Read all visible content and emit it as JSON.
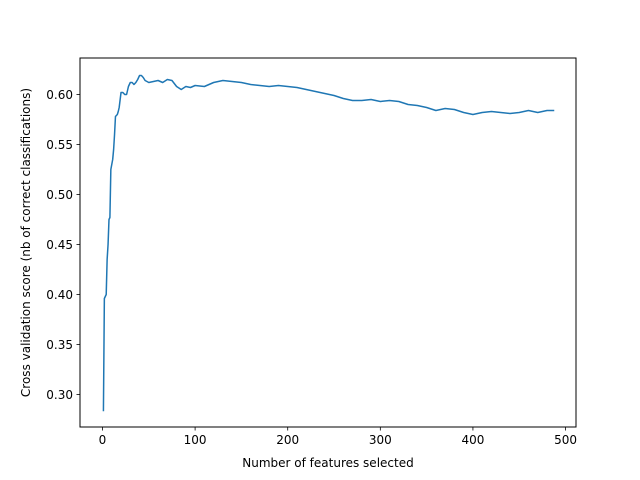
{
  "chart_data": {
    "type": "line",
    "title": "",
    "xlabel": "Number of features selected",
    "ylabel": "Cross validation score (nb of correct classifications)",
    "xlim": [
      -24.3,
      511.3
    ],
    "ylim": [
      0.2675,
      0.6365
    ],
    "xticks": [
      0,
      100,
      200,
      300,
      400,
      500
    ],
    "xtick_labels": [
      "0",
      "100",
      "200",
      "300",
      "400",
      "500"
    ],
    "yticks": [
      0.3,
      0.35,
      0.4,
      0.45,
      0.5,
      0.55,
      0.6
    ],
    "ytick_labels": [
      "0.30",
      "0.35",
      "0.40",
      "0.45",
      "0.50",
      "0.55",
      "0.60"
    ],
    "grid": false,
    "legend": null,
    "series": [
      {
        "color": "#1f77b4",
        "x": [
          1,
          2,
          3,
          4,
          5,
          6,
          7,
          8,
          9,
          10,
          11,
          12,
          13,
          14,
          15,
          16,
          17,
          18,
          20,
          22,
          24,
          26,
          28,
          30,
          32,
          34,
          36,
          38,
          40,
          42,
          44,
          46,
          48,
          50,
          55,
          60,
          65,
          70,
          75,
          80,
          85,
          90,
          95,
          100,
          110,
          120,
          130,
          140,
          150,
          160,
          170,
          180,
          190,
          200,
          210,
          220,
          230,
          240,
          250,
          260,
          270,
          280,
          290,
          300,
          310,
          320,
          330,
          340,
          350,
          360,
          370,
          380,
          390,
          400,
          410,
          420,
          430,
          440,
          450,
          460,
          470,
          480,
          487
        ],
        "y": [
          0.284,
          0.396,
          0.398,
          0.4,
          0.435,
          0.45,
          0.475,
          0.477,
          0.525,
          0.53,
          0.535,
          0.545,
          0.56,
          0.578,
          0.579,
          0.58,
          0.583,
          0.587,
          0.602,
          0.602,
          0.6,
          0.6,
          0.608,
          0.612,
          0.612,
          0.61,
          0.612,
          0.615,
          0.619,
          0.619,
          0.617,
          0.614,
          0.613,
          0.612,
          0.613,
          0.614,
          0.612,
          0.615,
          0.614,
          0.608,
          0.605,
          0.608,
          0.607,
          0.609,
          0.608,
          0.612,
          0.614,
          0.613,
          0.612,
          0.61,
          0.609,
          0.608,
          0.609,
          0.608,
          0.607,
          0.605,
          0.603,
          0.601,
          0.599,
          0.596,
          0.594,
          0.594,
          0.595,
          0.593,
          0.594,
          0.593,
          0.59,
          0.589,
          0.587,
          0.584,
          0.586,
          0.585,
          0.582,
          0.58,
          0.582,
          0.583,
          0.582,
          0.581,
          0.582,
          0.584,
          0.582,
          0.584,
          0.584
        ]
      }
    ]
  }
}
